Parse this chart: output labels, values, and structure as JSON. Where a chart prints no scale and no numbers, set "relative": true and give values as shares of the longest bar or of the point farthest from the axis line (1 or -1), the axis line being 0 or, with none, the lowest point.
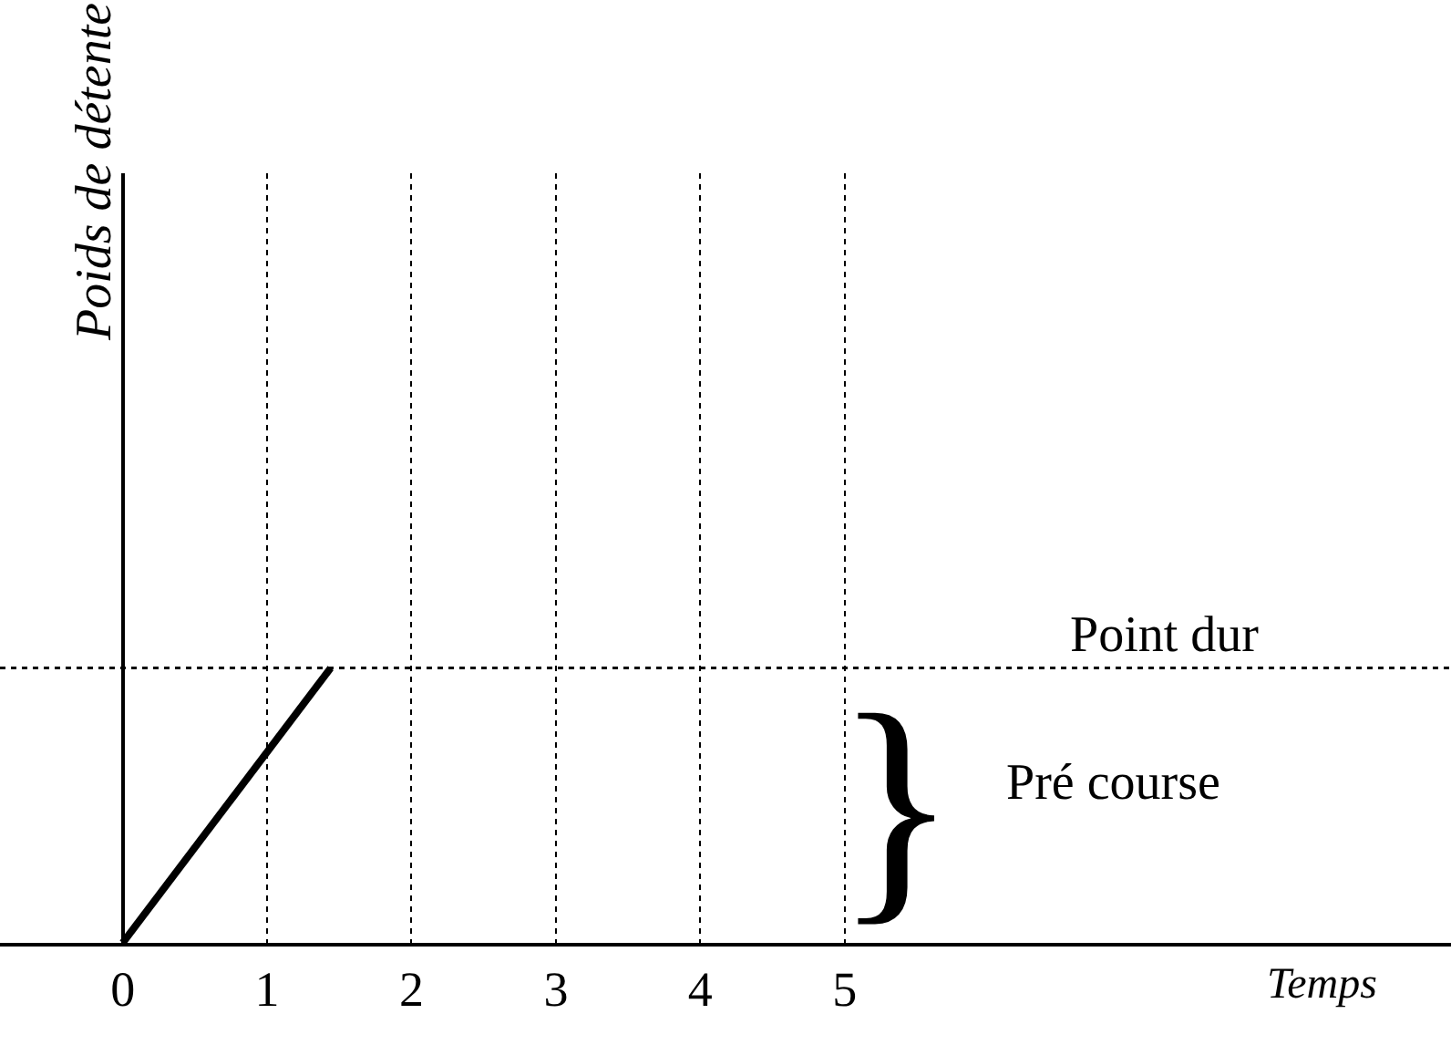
{
  "chart_data": {
    "type": "line",
    "relative": true,
    "x": [
      0,
      1.44
    ],
    "values": [
      0,
      1
    ],
    "color": "#000000",
    "xlim": [
      -0.85,
      9.2
    ],
    "xticks": [
      0,
      1,
      2,
      3,
      4,
      5
    ],
    "grid": "x",
    "xlabel": "Temps",
    "ref_lines": [
      {
        "axis": "y",
        "value": 1,
        "label": "Point dur",
        "line_style": "dotted",
        "color": "#000000"
      }
    ],
    "annotations": [
      "Poids de détente",
      "}",
      "Pré course"
    ],
    "marker": "none",
    "line_style": "solid",
    "legend": false
  }
}
